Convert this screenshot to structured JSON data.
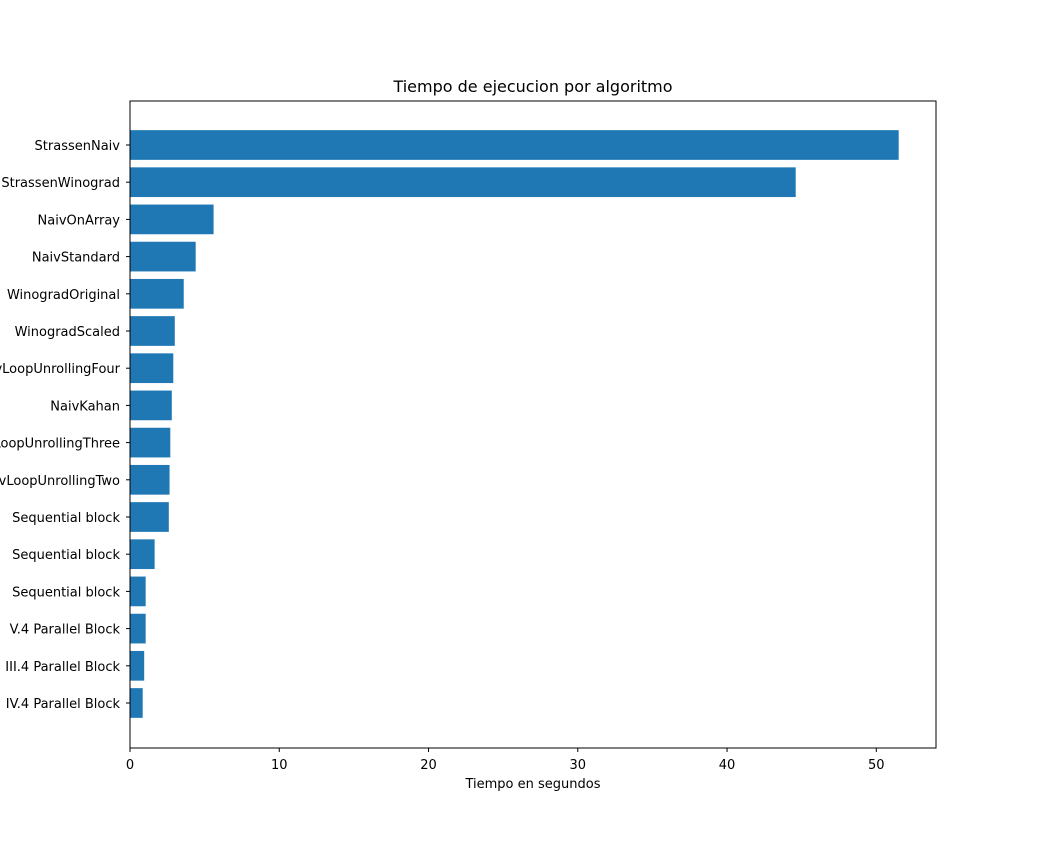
{
  "chart_data": {
    "type": "bar",
    "orientation": "horizontal",
    "title": "Tiempo de ejecucion por algoritmo",
    "xlabel": "Tiempo en segundos",
    "ylabel": "",
    "xlim": [
      0,
      54
    ],
    "x_ticks": [
      "0",
      "10",
      "20",
      "30",
      "40",
      "50"
    ],
    "x_tick_values": [
      0,
      10,
      20,
      30,
      40,
      50
    ],
    "grid": false,
    "bar_color": "#1f77b4",
    "categories": [
      "StrassenNaiv",
      "StrassenWinograd",
      "NaivOnArray",
      "NaivStandard",
      "WinogradOriginal",
      "WinogradScaled",
      "NaivLoopUnrollingFour",
      "NaivKahan",
      "NaivLoopUnrollingThree",
      "NaivLoopUnrollingTwo",
      "Sequential block",
      "Sequential block",
      "Sequential block",
      "V.4 Parallel Block",
      "III.4 Parallel Block",
      "IV.4 Parallel Block"
    ],
    "values": [
      51.5,
      44.6,
      5.6,
      4.4,
      3.6,
      3.0,
      2.9,
      2.8,
      2.7,
      2.65,
      2.6,
      1.65,
      1.05,
      1.05,
      0.95,
      0.85
    ]
  }
}
